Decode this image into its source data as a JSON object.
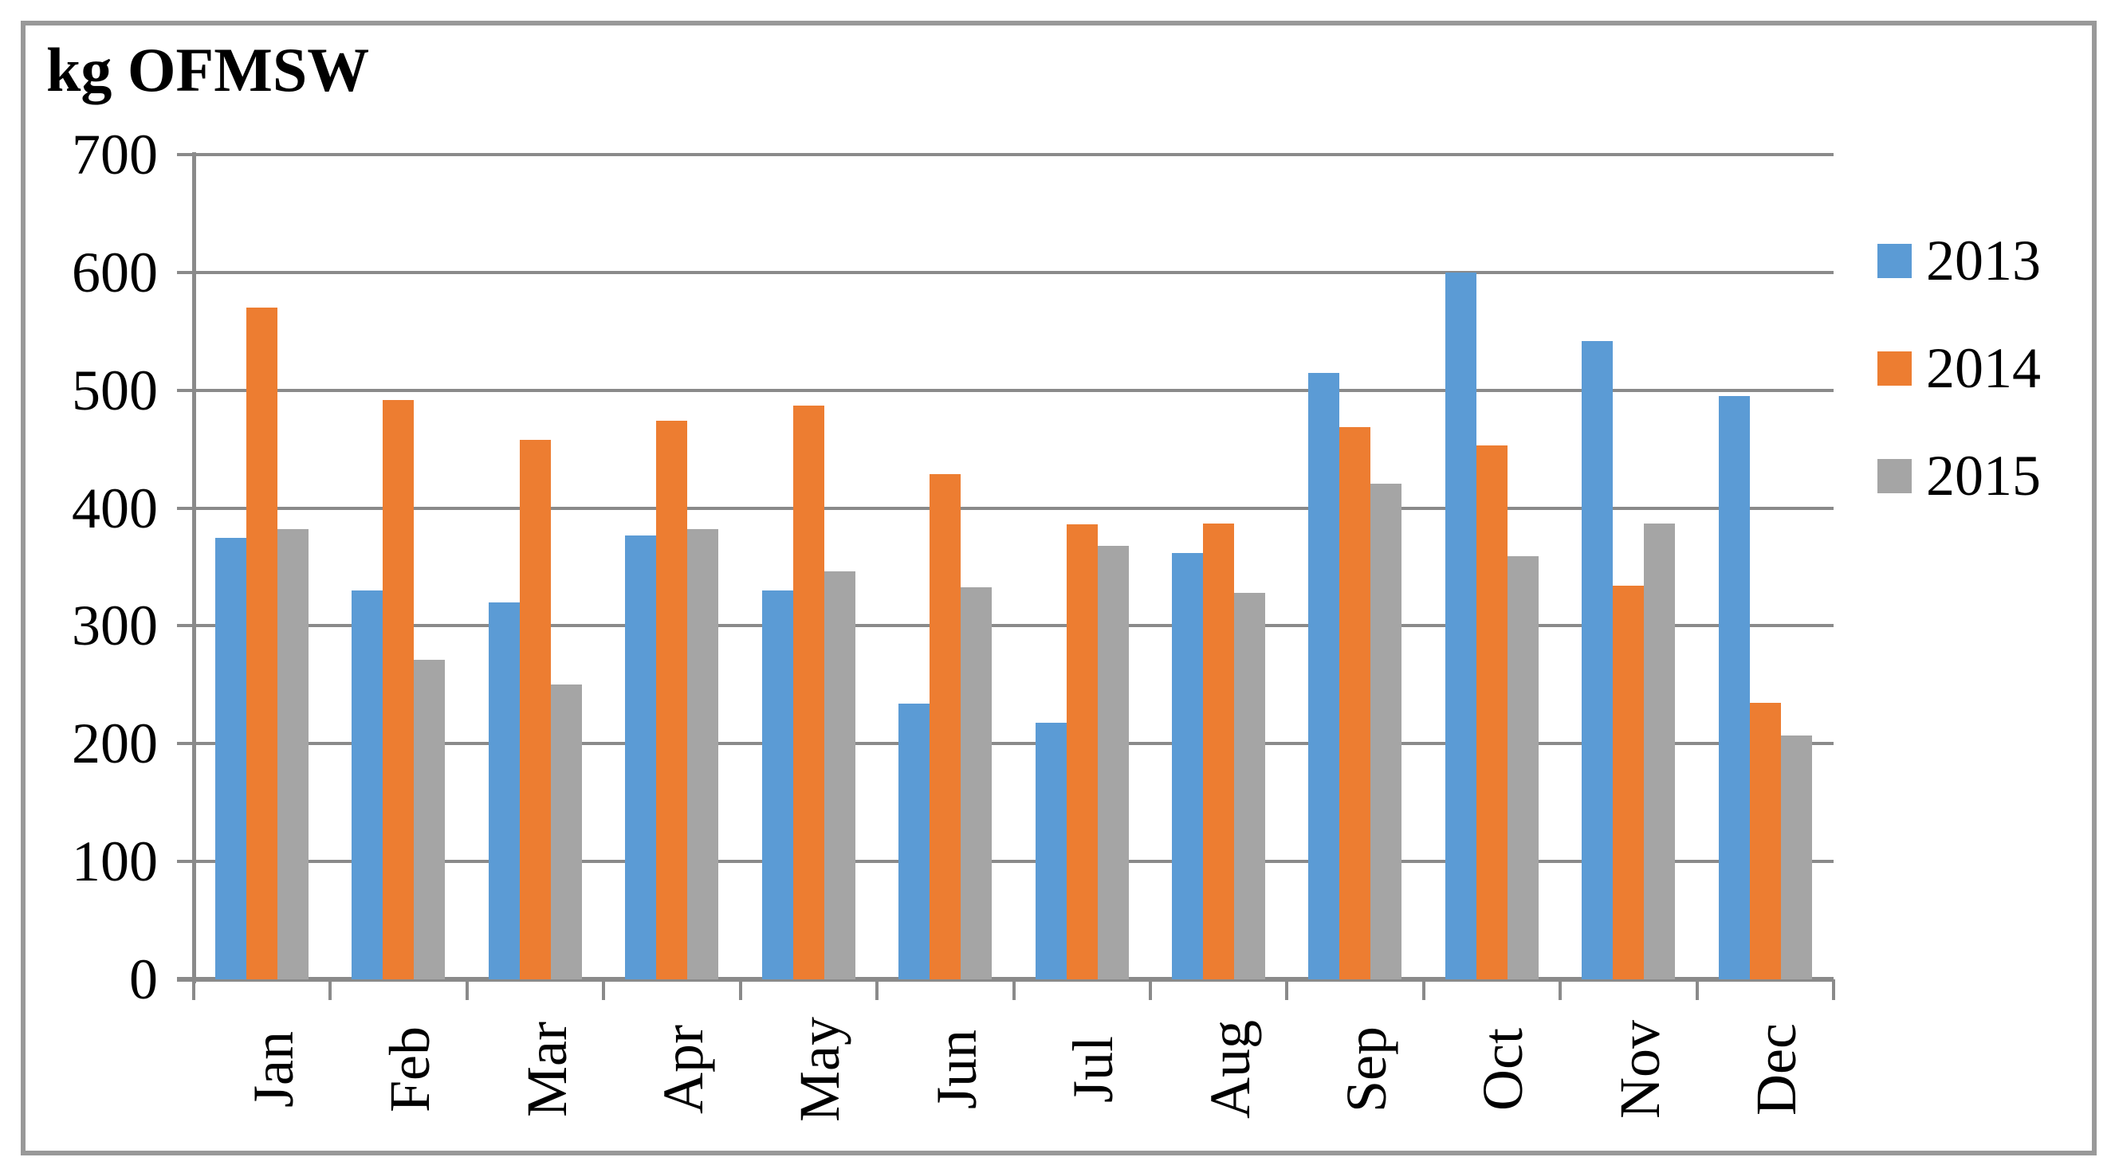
{
  "page": {
    "background": "#FFFFFF",
    "border_color": "#999999",
    "gridline_color": "#8A8A8A",
    "text_color": "#000000"
  },
  "chart_data": {
    "type": "bar",
    "title": "kg OFMSW",
    "categories": [
      "Jan",
      "Feb",
      "Mar",
      "Apr",
      "May",
      "Jun",
      "Jul",
      "Aug",
      "Sep",
      "Oct",
      "Nov",
      "Dec"
    ],
    "series": [
      {
        "name": "2013",
        "color": "#5B9BD5",
        "values": [
          375,
          330,
          320,
          377,
          330,
          234,
          218,
          362,
          515,
          600,
          542,
          495
        ]
      },
      {
        "name": "2014",
        "color": "#ED7D31",
        "values": [
          570,
          492,
          458,
          474,
          487,
          429,
          386,
          387,
          469,
          453,
          334,
          235
        ]
      },
      {
        "name": "2015",
        "color": "#A5A5A5",
        "values": [
          382,
          271,
          250,
          382,
          346,
          333,
          368,
          328,
          421,
          359,
          387,
          207
        ]
      }
    ],
    "xlabel": "",
    "ylabel": "",
    "ylim": [
      0,
      700
    ],
    "yticks": [
      0,
      100,
      200,
      300,
      400,
      500,
      600,
      700
    ],
    "grid": true,
    "legend_position": "right",
    "legend_entries": [
      "2013",
      "2014",
      "2015"
    ]
  }
}
